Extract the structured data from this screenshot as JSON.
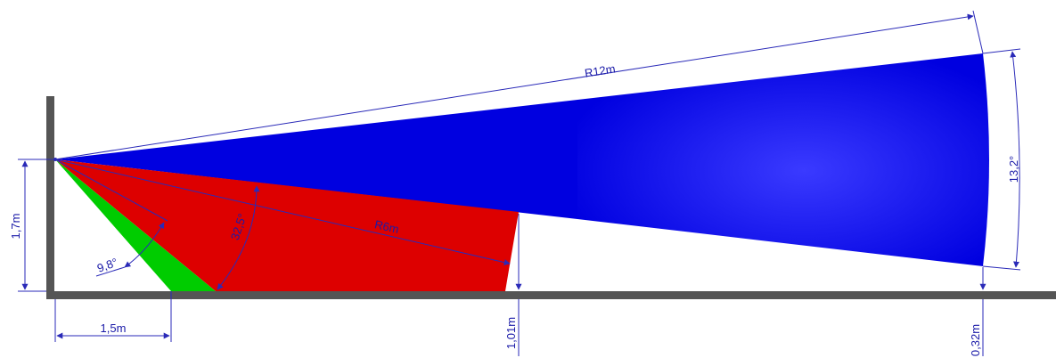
{
  "diagram": {
    "colors": {
      "wall": "#555555",
      "floor": "#555555",
      "far_zone": "#0000e0",
      "far_zone_glow": "#3a3aff",
      "mid_zone": "#dd0000",
      "near_zone": "#00cc00",
      "dimension": "#2a2ab8",
      "dimension_text": "#1a1aa8"
    },
    "labels": {
      "mount_height": "1,7m",
      "near_distance": "1,5m",
      "near_angle": "9,8°",
      "mid_angle": "32,5°",
      "mid_radius": "R6m",
      "mid_end_height": "1,01m",
      "far_radius": "R12m",
      "far_angle": "13,2°",
      "far_end_height": "0,32m"
    }
  }
}
